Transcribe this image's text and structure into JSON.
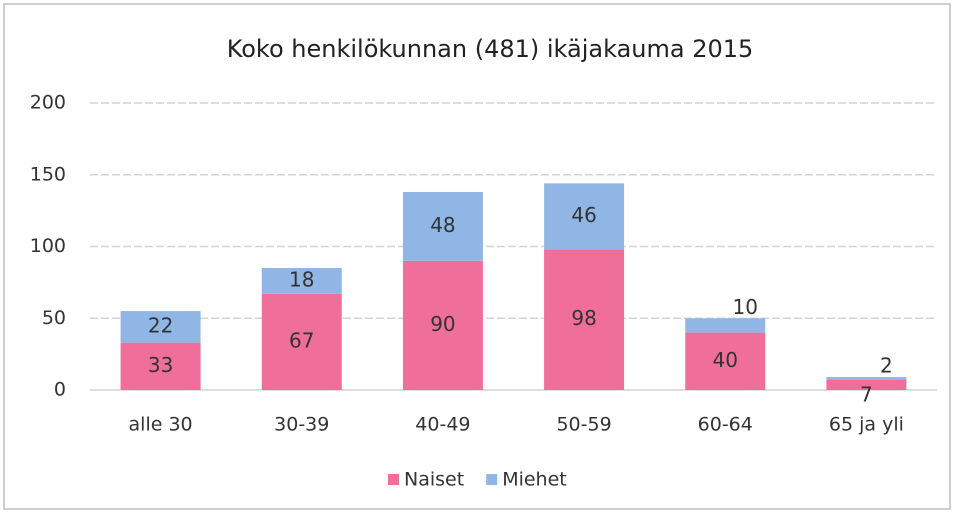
{
  "chart_data": {
    "type": "stacked_bar",
    "title": "Koko henkilökunnan (481) ikäjakauma 2015",
    "categories": [
      "alle 30",
      "30-39",
      "40-49",
      "50-59",
      "60-64",
      "65 ja yli"
    ],
    "series": [
      {
        "name": "Naiset",
        "color": "#ef6f9a",
        "values": [
          33,
          67,
          90,
          98,
          40,
          7
        ]
      },
      {
        "name": "Miehet",
        "color": "#8fb6e4",
        "values": [
          22,
          18,
          48,
          46,
          10,
          2
        ]
      }
    ],
    "ylim": [
      0,
      200
    ],
    "yticks": [
      0,
      50,
      100,
      150,
      200
    ],
    "grid": true,
    "legend": "bottom"
  }
}
